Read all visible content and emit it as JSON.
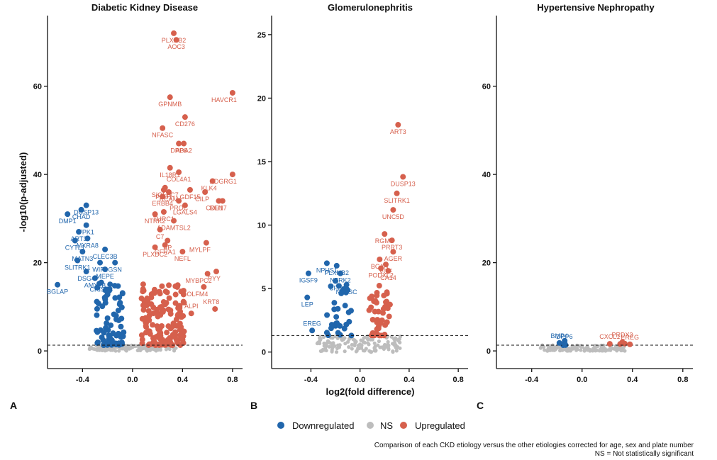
{
  "colors": {
    "down": "#2166ac",
    "ns": "#bdbdbd",
    "up": "#d6604d"
  },
  "legend": {
    "down": "Downregulated",
    "ns": "NS",
    "up": "Upregulated"
  },
  "caption": {
    "line1": "Comparison of each CKD etiology versus the other etiologies corrected for age, sex and plate number",
    "line2": "NS = Not statistically significant"
  },
  "chart_data": [
    {
      "type": "scatter",
      "panel_letter": "A",
      "title": "Diabetic Kidney Disease",
      "xlabel": "",
      "ylabel": "-log10(p-adjusted)",
      "xlim": [
        -0.68,
        0.88
      ],
      "ylim": [
        -4,
        76
      ],
      "xticks": [
        -0.4,
        0.0,
        0.4,
        0.8
      ],
      "xtick_labels": [
        "-0.4",
        "0.0",
        "0.4",
        "0.8"
      ],
      "yticks": [
        0,
        20,
        40,
        60
      ],
      "ytick_labels": [
        "0",
        "20",
        "40",
        "60"
      ],
      "threshold": 1.3,
      "labeled_points": [
        {
          "gene": "PLXNB2",
          "x": 0.33,
          "y": 72.0,
          "reg": "up"
        },
        {
          "gene": "AOC3",
          "x": 0.35,
          "y": 70.5,
          "reg": "up"
        },
        {
          "gene": "HAVCR1",
          "x": 0.8,
          "y": 58.5,
          "reg": "up"
        },
        {
          "gene": "GPNMB",
          "x": 0.3,
          "y": 57.5,
          "reg": "up"
        },
        {
          "gene": "CD276",
          "x": 0.42,
          "y": 53.0,
          "reg": "up"
        },
        {
          "gene": "NFASC",
          "x": 0.24,
          "y": 50.5,
          "reg": "up"
        },
        {
          "gene": "ADA2",
          "x": 0.41,
          "y": 47.0,
          "reg": "up"
        },
        {
          "gene": "DPP6",
          "x": 0.37,
          "y": 47.0,
          "reg": "up"
        },
        {
          "gene": "IL18R1",
          "x": 0.3,
          "y": 41.5,
          "reg": "up"
        },
        {
          "gene": "COL4A1",
          "x": 0.37,
          "y": 40.5,
          "reg": "up"
        },
        {
          "gene": "ADGRG1",
          "x": 0.8,
          "y": 40.0,
          "reg": "up"
        },
        {
          "gene": "SIGLEC7",
          "x": 0.26,
          "y": 37.0,
          "reg": "up"
        },
        {
          "gene": "KLK4",
          "x": 0.64,
          "y": 38.5,
          "reg": "up"
        },
        {
          "gene": "CILP",
          "x": 0.58,
          "y": 36.0,
          "reg": "up"
        },
        {
          "gene": "PKD1",
          "x": 0.25,
          "y": 36.5,
          "reg": "up"
        },
        {
          "gene": "RCAM",
          "x": 0.29,
          "y": 36.0,
          "reg": "up"
        },
        {
          "gene": "CDH17",
          "x": 0.72,
          "y": 34.0,
          "reg": "up"
        },
        {
          "gene": "ERBB4",
          "x": 0.24,
          "y": 35.0,
          "reg": "up"
        },
        {
          "gene": "PROC",
          "x": 0.37,
          "y": 34.0,
          "reg": "up"
        },
        {
          "gene": "GDF15",
          "x": 0.46,
          "y": 36.5,
          "reg": "up"
        },
        {
          "gene": "REN",
          "x": 0.69,
          "y": 34.0,
          "reg": "up"
        },
        {
          "gene": "LGALS4",
          "x": 0.42,
          "y": 33.0,
          "reg": "up"
        },
        {
          "gene": "NTRK2",
          "x": 0.18,
          "y": 31.0,
          "reg": "up"
        },
        {
          "gene": "THRC1",
          "x": 0.25,
          "y": 31.5,
          "reg": "up"
        },
        {
          "gene": "ADAMTSL2",
          "x": 0.33,
          "y": 29.5,
          "reg": "up"
        },
        {
          "gene": "C7",
          "x": 0.22,
          "y": 27.5,
          "reg": "up"
        },
        {
          "gene": "MYLPF",
          "x": 0.59,
          "y": 24.5,
          "reg": "up"
        },
        {
          "gene": "AP",
          "x": 0.28,
          "y": 25.0,
          "reg": "up"
        },
        {
          "gene": "PLXDC2",
          "x": 0.18,
          "y": 23.5,
          "reg": "up"
        },
        {
          "gene": "GFRA1",
          "x": 0.26,
          "y": 24.0,
          "reg": "up"
        },
        {
          "gene": "NEFL",
          "x": 0.4,
          "y": 22.5,
          "reg": "up"
        },
        {
          "gene": "PYY",
          "x": 0.67,
          "y": 18.0,
          "reg": "up"
        },
        {
          "gene": "MYBPC2",
          "x": 0.6,
          "y": 17.5,
          "reg": "up"
        },
        {
          "gene": "OLFM4",
          "x": 0.57,
          "y": 14.5,
          "reg": "up"
        },
        {
          "gene": "KRT8",
          "x": 0.66,
          "y": 9.5,
          "reg": "up"
        },
        {
          "gene": "ALPI",
          "x": 0.47,
          "y": 8.5,
          "reg": "up"
        },
        {
          "gene": "DUSP13",
          "x": -0.37,
          "y": 33.0,
          "reg": "down"
        },
        {
          "gene": "CHAD",
          "x": -0.41,
          "y": 32.0,
          "reg": "down"
        },
        {
          "gene": "DMP1",
          "x": -0.52,
          "y": 31.0,
          "reg": "down"
        },
        {
          "gene": "TPK1",
          "x": -0.37,
          "y": 28.5,
          "reg": "down"
        },
        {
          "gene": "ART3",
          "x": -0.43,
          "y": 27.0,
          "reg": "down"
        },
        {
          "gene": "MXRA8",
          "x": -0.36,
          "y": 25.5,
          "reg": "down"
        },
        {
          "gene": "CYTL1",
          "x": -0.46,
          "y": 25.0,
          "reg": "down"
        },
        {
          "gene": "CLEC3B",
          "x": -0.22,
          "y": 23.0,
          "reg": "down"
        },
        {
          "gene": "MATN3",
          "x": -0.4,
          "y": 22.5,
          "reg": "down"
        },
        {
          "gene": "SLITRK1",
          "x": -0.44,
          "y": 20.5,
          "reg": "down"
        },
        {
          "gene": "WIF1",
          "x": -0.26,
          "y": 20.0,
          "reg": "down"
        },
        {
          "gene": "GSN",
          "x": -0.14,
          "y": 20.0,
          "reg": "down"
        },
        {
          "gene": "DSG4",
          "x": -0.37,
          "y": 18.0,
          "reg": "down"
        },
        {
          "gene": "MEPE",
          "x": -0.22,
          "y": 18.5,
          "reg": "down"
        },
        {
          "gene": "AMY2B",
          "x": -0.3,
          "y": 16.5,
          "reg": "down"
        },
        {
          "gene": "CRISP3",
          "x": -0.25,
          "y": 15.5,
          "reg": "down"
        },
        {
          "gene": "BGLAP",
          "x": -0.6,
          "y": 15.0,
          "reg": "down"
        }
      ]
    },
    {
      "type": "scatter",
      "panel_letter": "B",
      "title": "Glomerulonephritis",
      "xlabel": "log2(fold difference)",
      "ylabel": "",
      "xlim": [
        -0.72,
        0.88
      ],
      "ylim": [
        -1.3,
        26.5
      ],
      "xticks": [
        -0.4,
        0.0,
        0.4,
        0.8
      ],
      "xtick_labels": [
        "-0.4",
        "0.0",
        "0.4",
        "0.8"
      ],
      "yticks": [
        0,
        5,
        10,
        15,
        20,
        25
      ],
      "ytick_labels": [
        "0",
        "5",
        "10",
        "15",
        "20",
        "25"
      ],
      "threshold": 1.3,
      "labeled_points": [
        {
          "gene": "ART3",
          "x": 0.31,
          "y": 17.9,
          "reg": "up"
        },
        {
          "gene": "DUSP13",
          "x": 0.35,
          "y": 13.8,
          "reg": "up"
        },
        {
          "gene": "SLITRK1",
          "x": 0.3,
          "y": 12.5,
          "reg": "up"
        },
        {
          "gene": "UNC5D",
          "x": 0.27,
          "y": 11.2,
          "reg": "up"
        },
        {
          "gene": "RGMB",
          "x": 0.2,
          "y": 9.3,
          "reg": "up"
        },
        {
          "gene": "PRRT3",
          "x": 0.26,
          "y": 8.8,
          "reg": "up"
        },
        {
          "gene": "AGER",
          "x": 0.27,
          "y": 7.9,
          "reg": "up"
        },
        {
          "gene": "BCAN",
          "x": 0.16,
          "y": 7.3,
          "reg": "up"
        },
        {
          "gene": "VGF",
          "x": 0.21,
          "y": 6.9,
          "reg": "up"
        },
        {
          "gene": "PODXL2",
          "x": 0.17,
          "y": 6.6,
          "reg": "up"
        },
        {
          "gene": "CA14",
          "x": 0.23,
          "y": 6.4,
          "reg": "up"
        },
        {
          "gene": "NPHS1",
          "x": -0.27,
          "y": 7.0,
          "reg": "down"
        },
        {
          "gene": "PLXNB2",
          "x": -0.19,
          "y": 6.8,
          "reg": "down"
        },
        {
          "gene": "IGSF9",
          "x": -0.42,
          "y": 6.2,
          "reg": "down"
        },
        {
          "gene": "NTRK2",
          "x": -0.16,
          "y": 6.2,
          "reg": "down"
        },
        {
          "gene": "CFB",
          "x": -0.2,
          "y": 5.6,
          "reg": "down"
        },
        {
          "gene": "NFASC",
          "x": -0.11,
          "y": 5.3,
          "reg": "down"
        },
        {
          "gene": "LEP",
          "x": -0.43,
          "y": 4.3,
          "reg": "down"
        },
        {
          "gene": "EREG",
          "x": -0.39,
          "y": 1.7,
          "reg": "down"
        }
      ]
    },
    {
      "type": "scatter",
      "panel_letter": "C",
      "title": "Hypertensive Nephropathy",
      "xlabel": "",
      "ylabel": "",
      "xlim": [
        -0.68,
        0.88
      ],
      "ylim": [
        -4,
        76
      ],
      "xticks": [
        -0.4,
        0.0,
        0.4,
        0.8
      ],
      "xtick_labels": [
        "-0.4",
        "0.0",
        "0.4",
        "0.8"
      ],
      "yticks": [
        0,
        20,
        40,
        60
      ],
      "ytick_labels": [
        "0",
        "20",
        "40",
        "60"
      ],
      "threshold": 1.3,
      "labeled_points": [
        {
          "gene": "PRDX3",
          "x": 0.32,
          "y": 2.0,
          "reg": "up"
        },
        {
          "gene": "CXCL1",
          "x": 0.22,
          "y": 1.6,
          "reg": "up"
        },
        {
          "gene": "EREG",
          "x": 0.38,
          "y": 1.5,
          "reg": "up"
        },
        {
          "gene": "BMP4",
          "x": -0.18,
          "y": 1.8,
          "reg": "down"
        },
        {
          "gene": "DPP6",
          "x": -0.14,
          "y": 1.6,
          "reg": "down"
        }
      ]
    }
  ]
}
